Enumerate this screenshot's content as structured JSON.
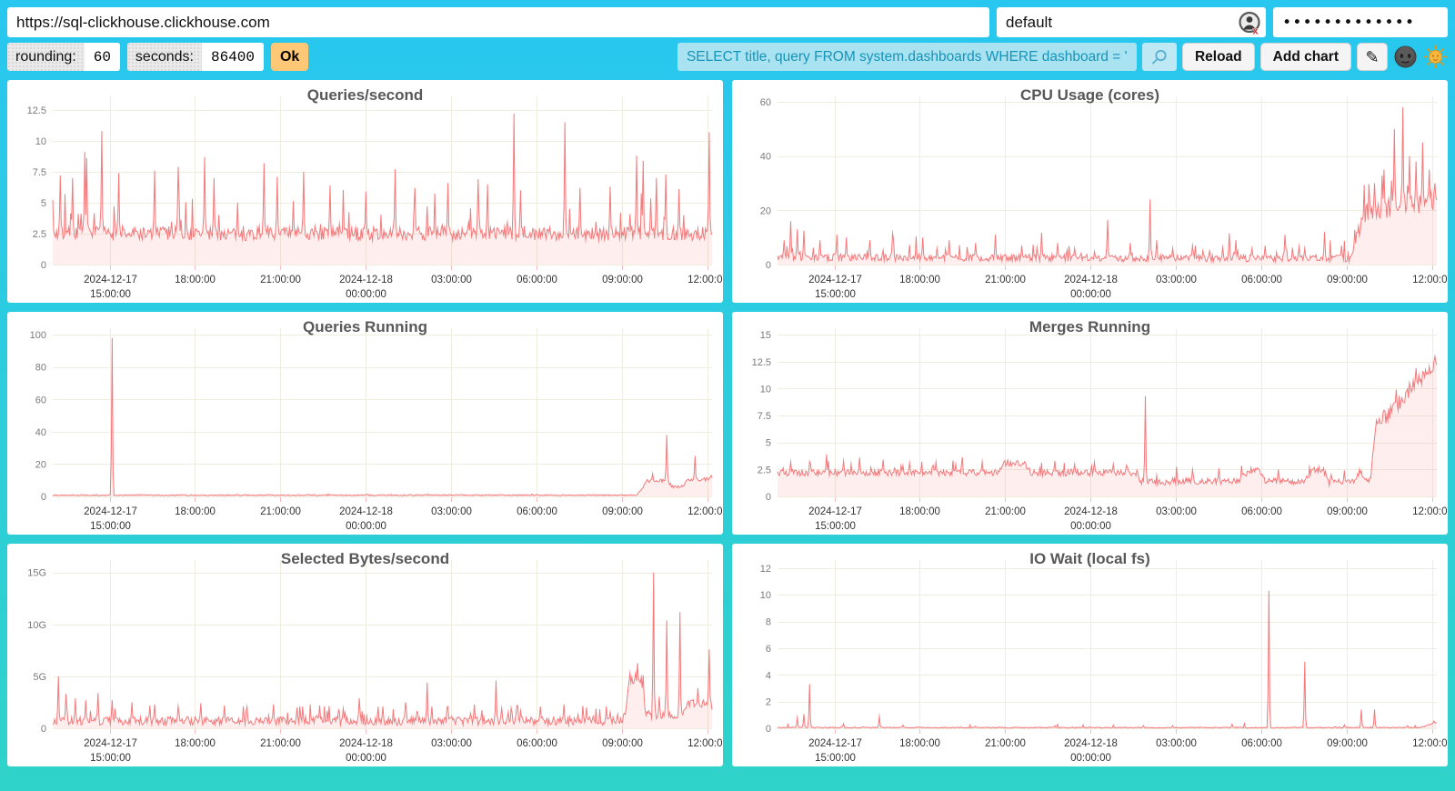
{
  "toolbar": {
    "url": "https://sql-clickhouse.clickhouse.com",
    "user": "default",
    "password_masked": "•••••••••••••"
  },
  "params": {
    "rounding_label": "rounding:",
    "rounding_value": "60",
    "seconds_label": "seconds:",
    "seconds_value": "86400",
    "ok_label": "Ok"
  },
  "query_bar": {
    "query": "SELECT title, query FROM system.dashboards WHERE dashboard = '",
    "reload_label": "Reload",
    "add_chart_label": "Add chart",
    "edit_glyph": "✎"
  },
  "icons": {
    "search": "magnifier",
    "edit": "pencil",
    "dark_theme": "moon-face",
    "light_theme": "sun-face",
    "user_status": "user-circle-with-red-x"
  },
  "colors": {
    "background_top": "#28C7F0",
    "background_bottom": "#2FD3C9",
    "line": "#F4797B",
    "fill": "rgba(244,121,123,0.13)",
    "grid": "#EFECE0",
    "axis_tick": "#F2BDBD",
    "y_label": "#7A7A7A",
    "x_label": "#333333",
    "title": "#585858",
    "query_bg": "#A9E2F1",
    "query_text": "#1694B8",
    "ok_bg": "#FFC876"
  },
  "x_axis": {
    "ticks": [
      {
        "frac": 0.0863,
        "lines": [
          "2024-12-17",
          "15:00:00"
        ]
      },
      {
        "frac": 0.2158,
        "lines": [
          "18:00:00"
        ]
      },
      {
        "frac": 0.3453,
        "lines": [
          "21:00:00"
        ]
      },
      {
        "frac": 0.4748,
        "lines": [
          "2024-12-18",
          "00:00:00"
        ]
      },
      {
        "frac": 0.6043,
        "lines": [
          "03:00:00"
        ]
      },
      {
        "frac": 0.7338,
        "lines": [
          "06:00:00"
        ]
      },
      {
        "frac": 0.8633,
        "lines": [
          "09:00:00"
        ]
      },
      {
        "frac": 0.9928,
        "lines": [
          "12:00:00"
        ]
      }
    ]
  },
  "charts": [
    {
      "title": "Queries/second",
      "type": "line",
      "y_max": 13.6,
      "y_tick_values": [
        0,
        2.5,
        5,
        7.5,
        10,
        12.5
      ],
      "y_tick_labels": [
        "0",
        "2.5",
        "5",
        "7.5",
        "10",
        "12.5"
      ],
      "series": {
        "seed": 7,
        "min": 1.5,
        "base": [
          [
            0,
            2.5
          ],
          [
            1,
            2.5
          ]
        ],
        "jitter": [
          [
            0,
            0.55
          ],
          [
            1,
            0.55
          ]
        ],
        "spike_prob": 0.12,
        "spike_amp": [
          [
            0,
            3.4
          ],
          [
            1,
            3.4
          ]
        ],
        "spikes": [
          [
            0.012,
            7.2
          ],
          [
            0.03,
            7.0
          ],
          [
            0.048,
            9.1
          ],
          [
            0.052,
            8.6
          ],
          [
            0.075,
            10.8
          ],
          [
            0.1,
            7.4
          ],
          [
            0.155,
            7.6
          ],
          [
            0.19,
            7.9
          ],
          [
            0.23,
            8.7
          ],
          [
            0.245,
            7.0
          ],
          [
            0.32,
            8.2
          ],
          [
            0.34,
            7.1
          ],
          [
            0.38,
            7.5
          ],
          [
            0.42,
            6.4
          ],
          [
            0.475,
            5.9
          ],
          [
            0.52,
            7.7
          ],
          [
            0.55,
            6.2
          ],
          [
            0.6,
            6.6
          ],
          [
            0.645,
            6.9
          ],
          [
            0.66,
            6.5
          ],
          [
            0.7,
            12.2
          ],
          [
            0.71,
            6.0
          ],
          [
            0.777,
            11.5
          ],
          [
            0.8,
            6.2
          ],
          [
            0.845,
            6.3
          ],
          [
            0.885,
            8.8
          ],
          [
            0.895,
            8.4
          ],
          [
            0.915,
            7.0
          ],
          [
            0.93,
            7.3
          ],
          [
            0.95,
            6.1
          ],
          [
            0.995,
            10.7
          ]
        ]
      }
    },
    {
      "title": "CPU Usage (cores)",
      "type": "line",
      "y_max": 62,
      "y_tick_values": [
        0,
        20,
        40,
        60
      ],
      "y_tick_labels": [
        "0",
        "20",
        "40",
        "60"
      ],
      "series": {
        "seed": 13,
        "min": 0.5,
        "base": [
          [
            0,
            3
          ],
          [
            0.05,
            2.6
          ],
          [
            0.86,
            2.3
          ],
          [
            0.872,
            3
          ],
          [
            0.886,
            17
          ],
          [
            0.9,
            20
          ],
          [
            0.93,
            21
          ],
          [
            0.97,
            22
          ],
          [
            1,
            24
          ]
        ],
        "jitter": [
          [
            0,
            1.3
          ],
          [
            0.86,
            1.3
          ],
          [
            0.885,
            3.5
          ],
          [
            1,
            4.2
          ]
        ],
        "spike_prob": 0.13,
        "spike_amp": [
          [
            0,
            7
          ],
          [
            0.86,
            7
          ],
          [
            0.885,
            16
          ],
          [
            1,
            18
          ]
        ],
        "spikes": [
          [
            0.01,
            9
          ],
          [
            0.02,
            16
          ],
          [
            0.03,
            13
          ],
          [
            0.04,
            12.5
          ],
          [
            0.065,
            9
          ],
          [
            0.09,
            11
          ],
          [
            0.105,
            10
          ],
          [
            0.14,
            9
          ],
          [
            0.175,
            11.5
          ],
          [
            0.22,
            10
          ],
          [
            0.26,
            9
          ],
          [
            0.3,
            8
          ],
          [
            0.33,
            11
          ],
          [
            0.37,
            7
          ],
          [
            0.4,
            11.8
          ],
          [
            0.425,
            8
          ],
          [
            0.45,
            6
          ],
          [
            0.5,
            16.5
          ],
          [
            0.535,
            8
          ],
          [
            0.565,
            24
          ],
          [
            0.575,
            9
          ],
          [
            0.6,
            6
          ],
          [
            0.63,
            7
          ],
          [
            0.655,
            5
          ],
          [
            0.685,
            11.5
          ],
          [
            0.695,
            9
          ],
          [
            0.72,
            6
          ],
          [
            0.74,
            7
          ],
          [
            0.77,
            11
          ],
          [
            0.8,
            6
          ],
          [
            0.83,
            12
          ],
          [
            0.855,
            7
          ],
          [
            0.905,
            30
          ],
          [
            0.92,
            35
          ],
          [
            0.935,
            50
          ],
          [
            0.948,
            58
          ],
          [
            0.958,
            40
          ],
          [
            0.968,
            38
          ],
          [
            0.978,
            45
          ],
          [
            0.988,
            35
          ],
          [
            0.997,
            30
          ]
        ]
      }
    },
    {
      "title": "Queries Running",
      "type": "line",
      "y_max": 104,
      "y_tick_values": [
        0,
        20,
        40,
        60,
        80,
        100
      ],
      "y_tick_labels": [
        "0",
        "20",
        "40",
        "60",
        "80",
        "100"
      ],
      "series": {
        "seed": 21,
        "min": 0.2,
        "base": [
          [
            0,
            0.8
          ],
          [
            0.885,
            0.8
          ],
          [
            0.893,
            4
          ],
          [
            0.9,
            9.5
          ],
          [
            0.92,
            9.5
          ],
          [
            0.932,
            10
          ],
          [
            0.94,
            6
          ],
          [
            0.955,
            6
          ],
          [
            0.963,
            10
          ],
          [
            0.985,
            10
          ],
          [
            1,
            11.5
          ]
        ],
        "jitter": [
          [
            0,
            0.35
          ],
          [
            0.88,
            0.35
          ],
          [
            0.9,
            1.0
          ],
          [
            1,
            1.2
          ]
        ],
        "spike_prob": 0.03,
        "spike_amp": [
          [
            0,
            0.8
          ],
          [
            1,
            0.8
          ]
        ],
        "spikes": [
          [
            0.09,
            98
          ],
          [
            0.91,
            14
          ],
          [
            0.931,
            38
          ],
          [
            0.974,
            25
          ],
          [
            0.998,
            13
          ]
        ]
      }
    },
    {
      "title": "Merges Running",
      "type": "line",
      "y_max": 15.6,
      "y_tick_values": [
        0,
        2.5,
        5,
        7.5,
        10,
        12.5,
        15
      ],
      "y_tick_labels": [
        "0",
        "2.5",
        "5",
        "7.5",
        "10",
        "12.5",
        "15"
      ],
      "series": {
        "seed": 5,
        "min": 0.9,
        "base": [
          [
            0,
            2.2
          ],
          [
            0.335,
            2.2
          ],
          [
            0.345,
            3.1
          ],
          [
            0.375,
            3.1
          ],
          [
            0.385,
            2.2
          ],
          [
            0.545,
            2.2
          ],
          [
            0.55,
            1.3
          ],
          [
            0.6,
            1.4
          ],
          [
            0.7,
            1.4
          ],
          [
            0.715,
            2.4
          ],
          [
            0.73,
            2.4
          ],
          [
            0.74,
            1.4
          ],
          [
            0.8,
            1.4
          ],
          [
            0.812,
            2.5
          ],
          [
            0.828,
            2.5
          ],
          [
            0.836,
            1.3
          ],
          [
            0.875,
            1.3
          ],
          [
            0.883,
            2.4
          ],
          [
            0.893,
            1.4
          ],
          [
            0.9,
            1.8
          ],
          [
            0.908,
            6.9
          ],
          [
            0.925,
            7.4
          ],
          [
            0.95,
            9.2
          ],
          [
            0.97,
            10.6
          ],
          [
            0.985,
            11.4
          ],
          [
            1,
            12.6
          ]
        ],
        "jitter": [
          [
            0,
            0.3
          ],
          [
            0.9,
            0.3
          ],
          [
            0.915,
            0.7
          ],
          [
            1,
            0.85
          ]
        ],
        "spike_prob": 0.07,
        "spike_amp": [
          [
            0,
            1.3
          ],
          [
            1,
            1.3
          ]
        ],
        "spikes": [
          [
            0.02,
            3.2
          ],
          [
            0.05,
            3.0
          ],
          [
            0.075,
            3.9
          ],
          [
            0.1,
            3.3
          ],
          [
            0.125,
            3.6
          ],
          [
            0.16,
            3.4
          ],
          [
            0.2,
            3.1
          ],
          [
            0.24,
            3.2
          ],
          [
            0.27,
            3.0
          ],
          [
            0.31,
            3.2
          ],
          [
            0.42,
            3.3
          ],
          [
            0.45,
            3.0
          ],
          [
            0.48,
            3.2
          ],
          [
            0.51,
            3.0
          ],
          [
            0.53,
            2.9
          ],
          [
            0.558,
            9.3
          ],
          [
            0.63,
            2.5
          ],
          [
            0.67,
            2.6
          ],
          [
            0.76,
            2.5
          ],
          [
            0.86,
            2.4
          ],
          [
            0.938,
            9.9
          ],
          [
            0.968,
            11.9
          ],
          [
            0.997,
            13.0
          ]
        ]
      }
    },
    {
      "title": "Selected Bytes/second",
      "type": "line",
      "y_max": 16.2,
      "y_tick_values": [
        0,
        5,
        10,
        15
      ],
      "y_tick_labels": [
        "0",
        "5G",
        "10G",
        "15G"
      ],
      "series": {
        "seed": 9,
        "min": 0.15,
        "base": [
          [
            0,
            0.7
          ],
          [
            0.857,
            0.7
          ],
          [
            0.868,
            1.1
          ],
          [
            0.875,
            4.6
          ],
          [
            0.893,
            4.6
          ],
          [
            0.9,
            1.3
          ],
          [
            0.955,
            1.3
          ],
          [
            0.962,
            2.4
          ],
          [
            0.99,
            2.4
          ],
          [
            1,
            2.1
          ]
        ],
        "jitter": [
          [
            0,
            0.4
          ],
          [
            1,
            0.4
          ]
        ],
        "spike_prob": 0.14,
        "spike_amp": [
          [
            0,
            1.7
          ],
          [
            1,
            1.7
          ]
        ],
        "spikes": [
          [
            0.008,
            5.0
          ],
          [
            0.02,
            3.3
          ],
          [
            0.035,
            2.9
          ],
          [
            0.05,
            2.7
          ],
          [
            0.068,
            3.4
          ],
          [
            0.09,
            2.7
          ],
          [
            0.12,
            2.5
          ],
          [
            0.155,
            2.3
          ],
          [
            0.19,
            2.1
          ],
          [
            0.225,
            2.4
          ],
          [
            0.26,
            2.2
          ],
          [
            0.295,
            2.1
          ],
          [
            0.335,
            2.3
          ],
          [
            0.37,
            2.0
          ],
          [
            0.405,
            2.2
          ],
          [
            0.44,
            1.9
          ],
          [
            0.465,
            2.9
          ],
          [
            0.5,
            2.1
          ],
          [
            0.535,
            2.5
          ],
          [
            0.568,
            4.4
          ],
          [
            0.6,
            2.1
          ],
          [
            0.64,
            2.3
          ],
          [
            0.672,
            4.6
          ],
          [
            0.705,
            2.2
          ],
          [
            0.74,
            2.1
          ],
          [
            0.775,
            2.3
          ],
          [
            0.81,
            2.0
          ],
          [
            0.84,
            2.1
          ],
          [
            0.912,
            15.0
          ],
          [
            0.932,
            10.4
          ],
          [
            0.952,
            11.2
          ],
          [
            0.995,
            7.6
          ]
        ]
      }
    },
    {
      "title": "IO Wait (local fs)",
      "type": "line",
      "y_max": 12.6,
      "y_tick_values": [
        0,
        2,
        4,
        6,
        8,
        10,
        12
      ],
      "y_tick_labels": [
        "0",
        "2",
        "4",
        "6",
        "8",
        "10",
        "12"
      ],
      "series": {
        "seed": 3,
        "min": 0.02,
        "base": [
          [
            0,
            0.05
          ],
          [
            0.975,
            0.05
          ],
          [
            0.99,
            0.3
          ],
          [
            1,
            0.45
          ]
        ],
        "jitter": [
          [
            0,
            0.04
          ],
          [
            1,
            0.04
          ]
        ],
        "spike_prob": 0.02,
        "spike_amp": [
          [
            0,
            0.3
          ],
          [
            1,
            0.3
          ]
        ],
        "spikes": [
          [
            0.03,
            0.8
          ],
          [
            0.04,
            1.05
          ],
          [
            0.048,
            3.3
          ],
          [
            0.1,
            0.35
          ],
          [
            0.155,
            0.9
          ],
          [
            0.19,
            0.25
          ],
          [
            0.3,
            0.15
          ],
          [
            0.42,
            0.2
          ],
          [
            0.555,
            0.2
          ],
          [
            0.6,
            0.2
          ],
          [
            0.69,
            0.3
          ],
          [
            0.745,
            10.3
          ],
          [
            0.8,
            5.0
          ],
          [
            0.86,
            0.25
          ],
          [
            0.885,
            1.4
          ],
          [
            0.905,
            1.4
          ],
          [
            0.955,
            0.2
          ],
          [
            0.995,
            0.55
          ]
        ]
      }
    }
  ]
}
